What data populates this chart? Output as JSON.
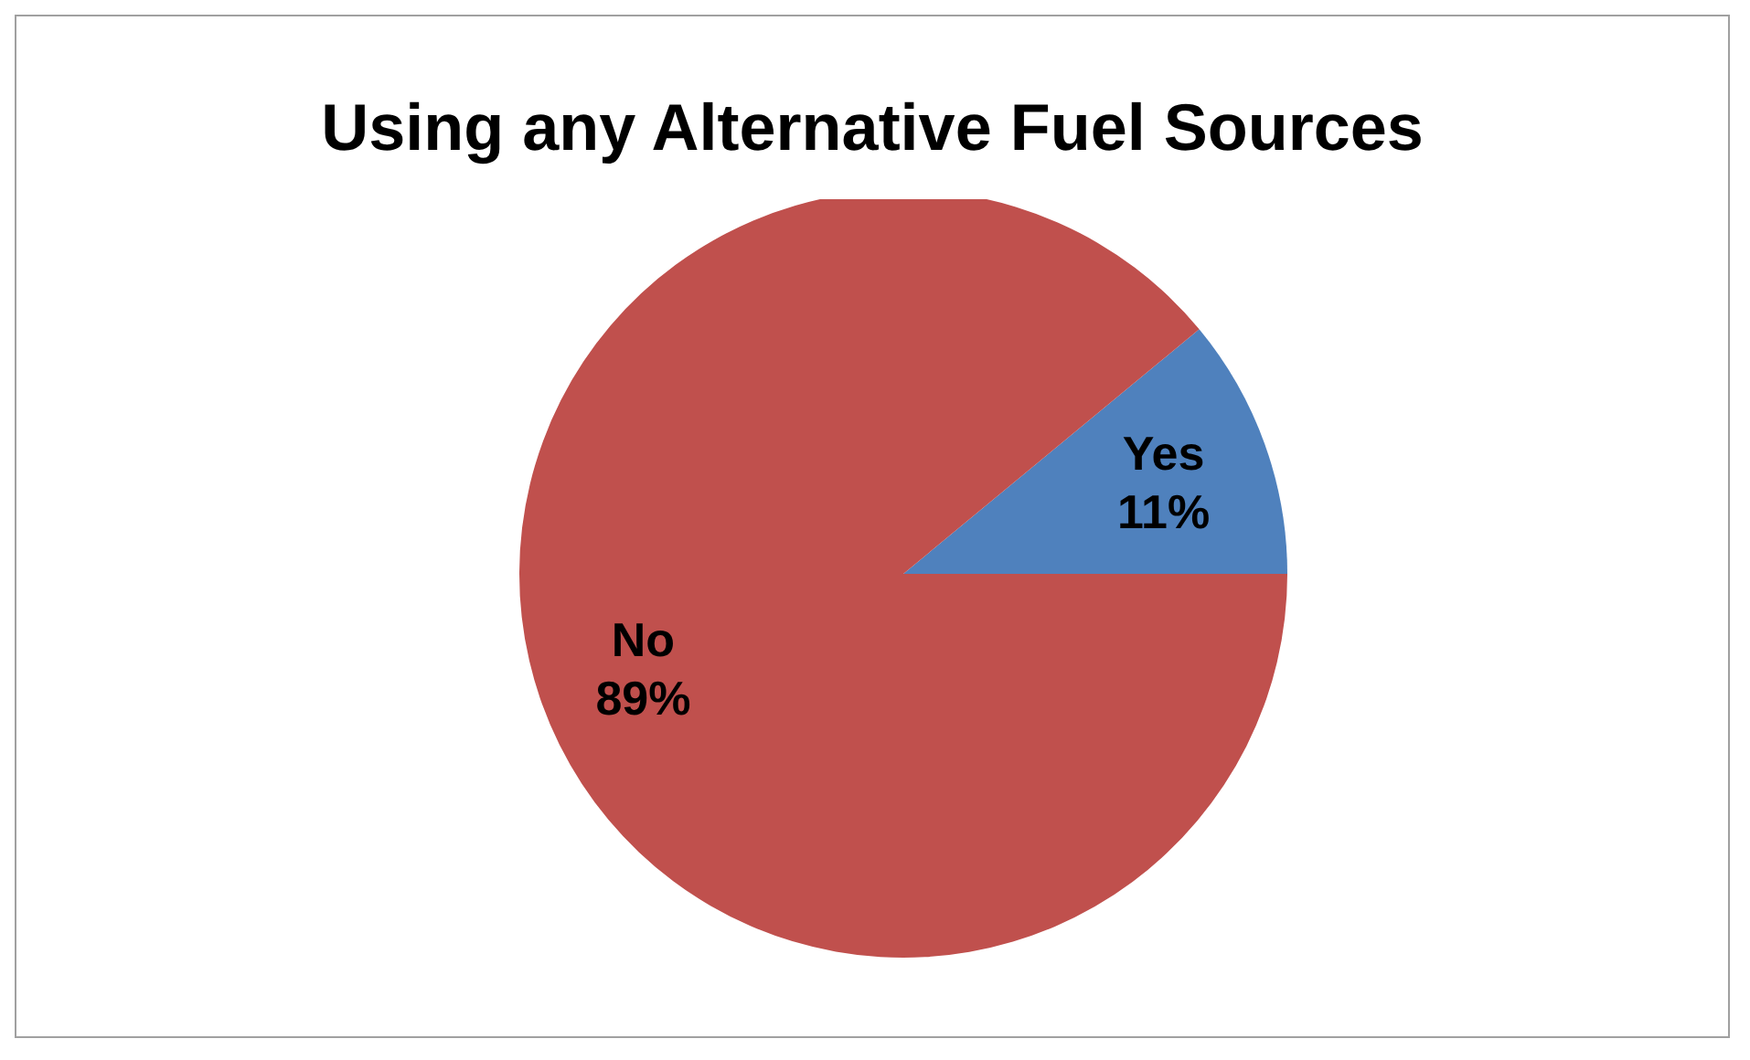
{
  "chart_data": {
    "type": "pie",
    "title": "Using any Alternative Fuel Sources",
    "categories": [
      "Yes",
      "No"
    ],
    "values": [
      11,
      89
    ],
    "colors": [
      "#4f81bd",
      "#c0504d"
    ],
    "value_labels": [
      "11%",
      "89%"
    ],
    "legend": false
  }
}
